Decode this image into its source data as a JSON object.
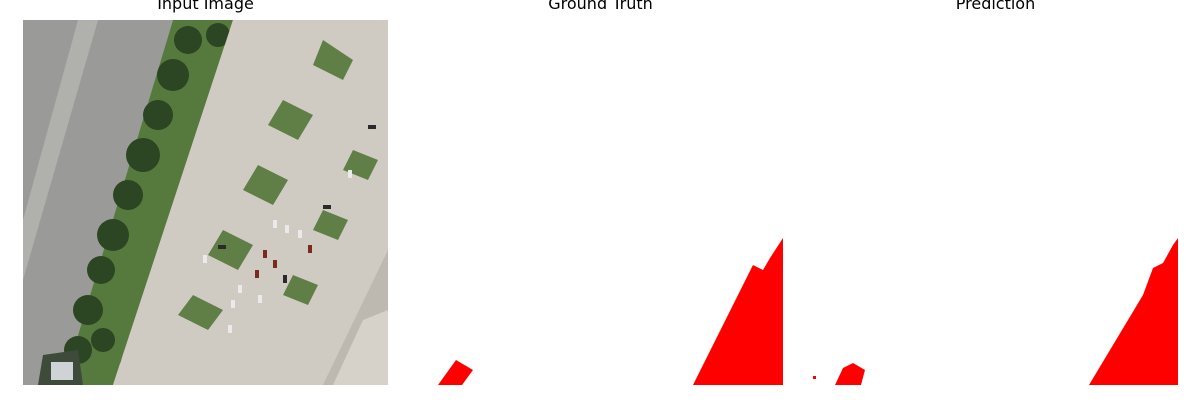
{
  "figure": {
    "panels": [
      {
        "title": "Input Image"
      },
      {
        "title": "Ground Truth"
      },
      {
        "title": "Prediction"
      }
    ],
    "colors": {
      "mask": "#ff0000",
      "background": "#ffffff",
      "pavement": "#c9c6bd",
      "road": "#9c9d9a",
      "grass": "#5e7d45",
      "trees": "#2f4a24"
    },
    "icons": [
      "aerial-parking-lot-image",
      "segmentation-mask"
    ]
  }
}
